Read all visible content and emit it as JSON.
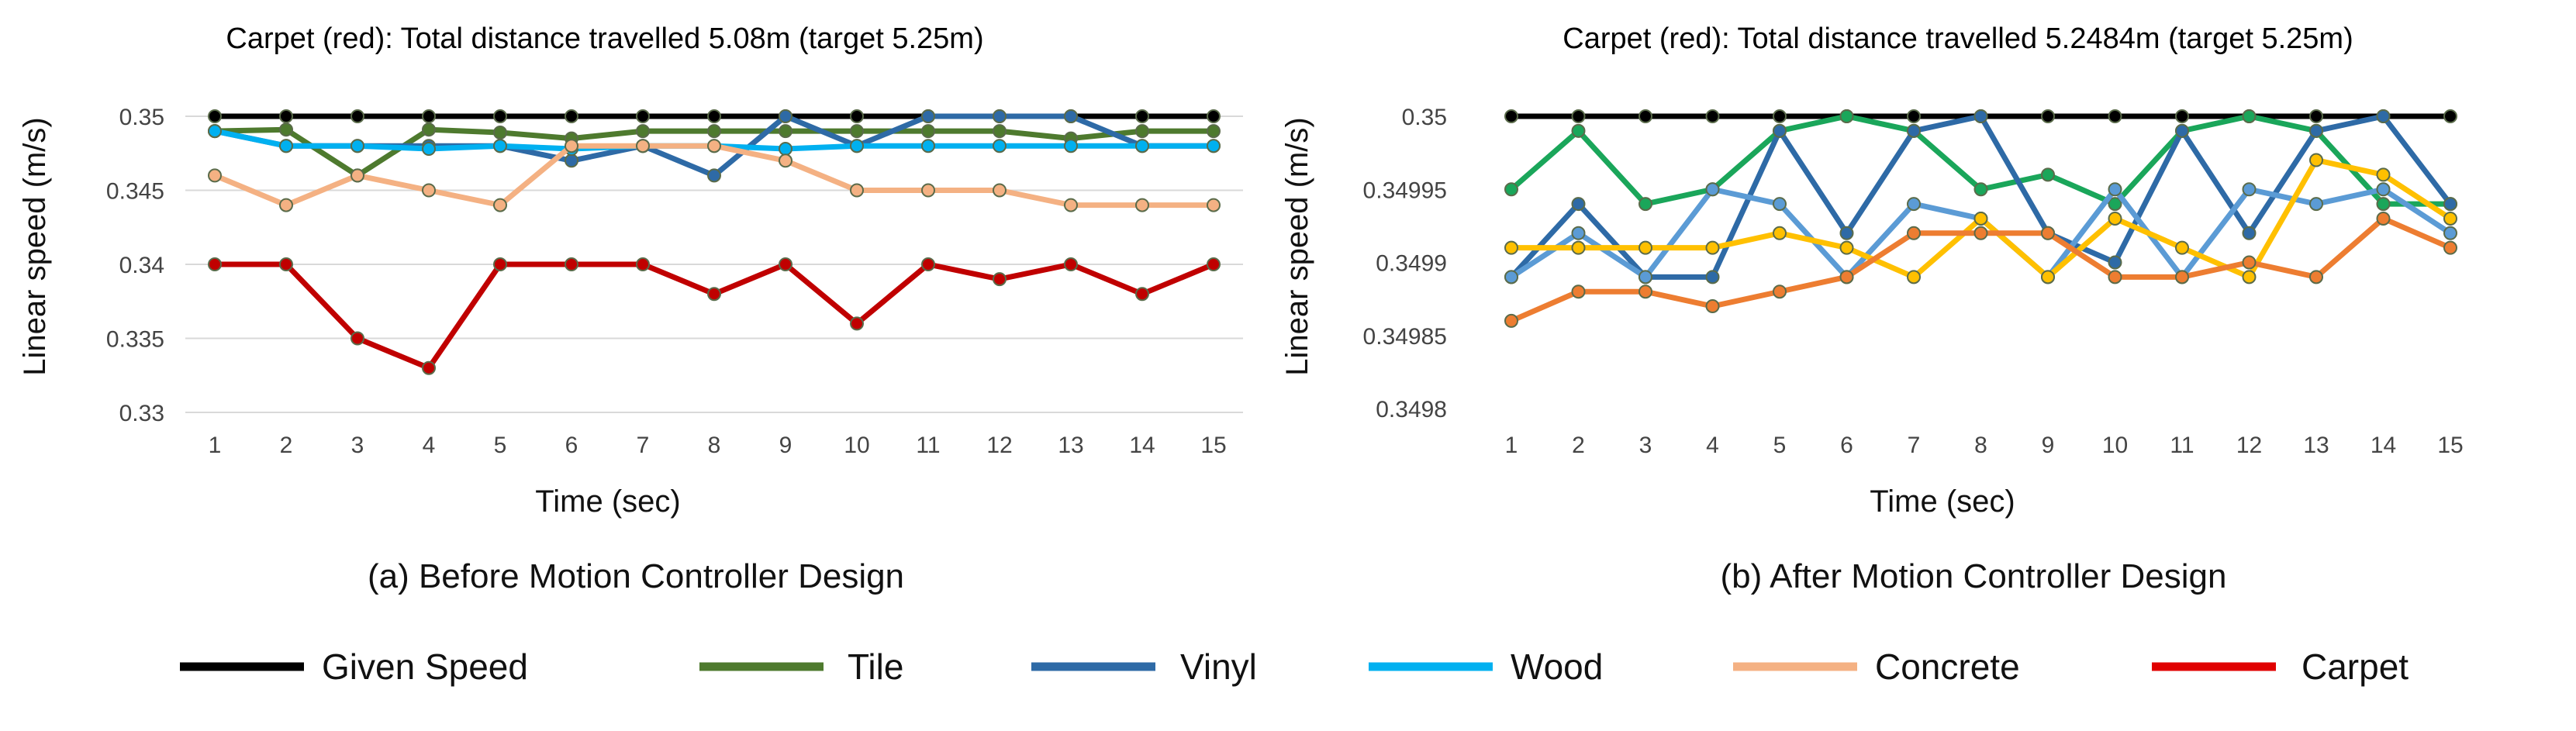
{
  "chart_data": [
    {
      "type": "line",
      "title": "Carpet (red): Total distance travelled 5.08m (target 5.25m)",
      "caption": "(a) Before Motion Controller Design",
      "xlabel": "Time (sec)",
      "ylabel": "Linear speed (m/s)",
      "x": [
        1,
        2,
        3,
        4,
        5,
        6,
        7,
        8,
        9,
        10,
        11,
        12,
        13,
        14,
        15
      ],
      "yticks": [
        0.33,
        0.335,
        0.34,
        0.345,
        0.35
      ],
      "ytick_labels": [
        "0.33",
        "0.335",
        "0.34",
        "0.345",
        "0.35"
      ],
      "ylim": [
        0.33,
        0.35
      ],
      "grid": true,
      "series": [
        {
          "name": "Given Speed",
          "color": "#000000",
          "values": [
            0.35,
            0.35,
            0.35,
            0.35,
            0.35,
            0.35,
            0.35,
            0.35,
            0.35,
            0.35,
            0.35,
            0.35,
            0.35,
            0.35,
            0.35
          ]
        },
        {
          "name": "Tile",
          "color": "#4e7a2e",
          "values": [
            0.349,
            0.3491,
            0.346,
            0.3491,
            0.3489,
            0.3485,
            0.349,
            0.349,
            0.349,
            0.349,
            0.349,
            0.349,
            0.3485,
            0.349,
            0.349
          ]
        },
        {
          "name": "Vinyl",
          "color": "#2e6aa6",
          "values": [
            0.349,
            0.348,
            0.348,
            0.348,
            0.348,
            0.347,
            0.348,
            0.346,
            0.35,
            0.348,
            0.35,
            0.35,
            0.35,
            0.348,
            0.348
          ]
        },
        {
          "name": "Wood",
          "color": "#00b0f0",
          "values": [
            0.349,
            0.348,
            0.348,
            0.3478,
            0.348,
            0.3478,
            0.348,
            0.348,
            0.3478,
            0.348,
            0.348,
            0.348,
            0.348,
            0.348,
            0.348
          ]
        },
        {
          "name": "Concrete",
          "color": "#f4b183",
          "values": [
            0.346,
            0.344,
            0.346,
            0.345,
            0.344,
            0.348,
            0.348,
            0.348,
            0.347,
            0.345,
            0.345,
            0.345,
            0.344,
            0.344,
            0.344
          ]
        },
        {
          "name": "Carpet",
          "color": "#c00000",
          "values": [
            0.34,
            0.34,
            0.335,
            0.333,
            0.34,
            0.34,
            0.34,
            0.338,
            0.34,
            0.336,
            0.34,
            0.339,
            0.34,
            0.338,
            0.34
          ]
        }
      ]
    },
    {
      "type": "line",
      "title": "Carpet (red): Total distance travelled 5.2484m (target 5.25m)",
      "caption": "(b) After Motion Controller Design",
      "xlabel": "Time (sec)",
      "ylabel": "Linear speed (m/s)",
      "x": [
        1,
        2,
        3,
        4,
        5,
        6,
        7,
        8,
        9,
        10,
        11,
        12,
        13,
        14,
        15
      ],
      "yticks": [
        0.3498,
        0.34985,
        0.3499,
        0.34995,
        0.35
      ],
      "ytick_labels": [
        "0.3498",
        "0.34985",
        "0.3499",
        "0.34995",
        "0.35"
      ],
      "ylim": [
        0.3498,
        0.35
      ],
      "grid": false,
      "series": [
        {
          "name": "Given Speed",
          "color": "#000000",
          "values": [
            0.35,
            0.35,
            0.35,
            0.35,
            0.35,
            0.35,
            0.35,
            0.35,
            0.35,
            0.35,
            0.35,
            0.35,
            0.35,
            0.35,
            0.35
          ]
        },
        {
          "name": "Tile",
          "color": "#1aa65a",
          "values": [
            0.34995,
            0.34999,
            0.34994,
            0.34995,
            0.34999,
            0.35,
            0.34999,
            0.34995,
            0.34996,
            0.34994,
            0.34999,
            0.35,
            0.34999,
            0.34994,
            0.34994
          ]
        },
        {
          "name": "Vinyl",
          "color": "#2e6aa6",
          "values": [
            0.34989,
            0.34994,
            0.34989,
            0.34989,
            0.34999,
            0.34992,
            0.34999,
            0.35,
            0.34992,
            0.3499,
            0.34999,
            0.34992,
            0.34999,
            0.35,
            0.34994
          ]
        },
        {
          "name": "Wood",
          "color": "#5b9bd5",
          "values": [
            0.34989,
            0.34992,
            0.34989,
            0.34995,
            0.34994,
            0.34989,
            0.34994,
            0.34993,
            0.34989,
            0.34995,
            0.34989,
            0.34995,
            0.34994,
            0.34995,
            0.34992
          ]
        },
        {
          "name": "Concrete",
          "color": "#ffc000",
          "values": [
            0.34991,
            0.34991,
            0.34991,
            0.34991,
            0.34992,
            0.34991,
            0.34989,
            0.34993,
            0.34989,
            0.34993,
            0.34991,
            0.34989,
            0.34997,
            0.34996,
            0.34993
          ]
        },
        {
          "name": "Carpet",
          "color": "#ed7d31",
          "values": [
            0.34986,
            0.34988,
            0.34988,
            0.34987,
            0.34988,
            0.34989,
            0.34992,
            0.34992,
            0.34992,
            0.34989,
            0.34989,
            0.3499,
            0.34989,
            0.34993,
            0.34991
          ]
        }
      ]
    }
  ],
  "legend": {
    "placement": "bottom",
    "items": [
      {
        "label": "Given Speed",
        "color": "#000000"
      },
      {
        "label": "Tile",
        "color": "#4e7a2e"
      },
      {
        "label": "Vinyl",
        "color": "#2e6aa6"
      },
      {
        "label": "Wood",
        "color": "#00b0f0"
      },
      {
        "label": "Concrete",
        "color": "#f4b183"
      },
      {
        "label": "Carpet",
        "color": "#e00000"
      }
    ]
  }
}
